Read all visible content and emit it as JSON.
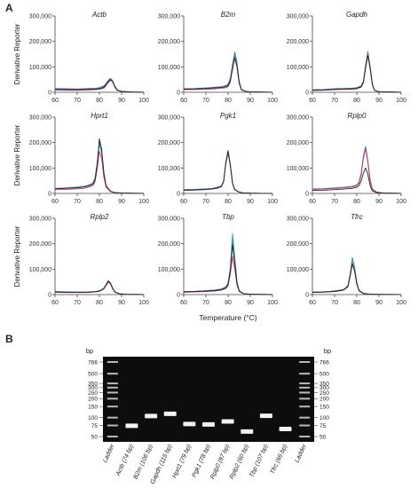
{
  "panel_a_label": "A",
  "panel_b_label": "B",
  "shared": {
    "ylabel": "Derivative  Reporter",
    "xlabel": "Temperature (°C)",
    "xticks": [
      "60",
      "70",
      "80",
      "90",
      "100"
    ],
    "yticks": [
      "0",
      "100,000",
      "200,000",
      "300,000"
    ]
  },
  "chart_data": [
    {
      "type": "line",
      "title": "Actb",
      "xlim": [
        60,
        100
      ],
      "ylim": [
        0,
        300000
      ],
      "x": [
        60,
        65,
        70,
        75,
        78,
        80,
        82,
        83,
        84,
        85,
        86,
        87,
        88,
        90,
        95,
        100
      ],
      "series": [
        {
          "color": "#4a6fb5",
          "values": [
            15000,
            14000,
            13000,
            15000,
            16000,
            18000,
            25000,
            35000,
            47000,
            55000,
            45000,
            25000,
            10000,
            4000,
            1000,
            500
          ]
        },
        {
          "color": "#2aa6a6",
          "values": [
            12000,
            11000,
            10000,
            12000,
            14000,
            16000,
            22000,
            32000,
            45000,
            53000,
            43000,
            22000,
            9000,
            3000,
            1000,
            500
          ]
        },
        {
          "color": "#d6336c",
          "values": [
            9000,
            8000,
            8000,
            9000,
            10000,
            12000,
            16000,
            26000,
            38000,
            48000,
            40000,
            20000,
            8000,
            3000,
            1000,
            500
          ]
        },
        {
          "color": "#222222",
          "values": [
            11000,
            10000,
            10000,
            11000,
            12000,
            14000,
            20000,
            30000,
            42000,
            50000,
            41000,
            21000,
            8000,
            3000,
            1000,
            500
          ]
        }
      ]
    },
    {
      "type": "line",
      "title": "B2m",
      "xlim": [
        60,
        100
      ],
      "ylim": [
        0,
        300000
      ],
      "x": [
        60,
        65,
        70,
        74,
        77,
        79,
        80,
        81,
        82,
        83,
        84,
        85,
        86,
        88,
        90,
        95,
        100
      ],
      "series": [
        {
          "color": "#4a6fb5",
          "values": [
            14000,
            15000,
            17000,
            20000,
            22000,
            26000,
            32000,
            55000,
            110000,
            158000,
            120000,
            45000,
            12000,
            3000,
            1500,
            800,
            500
          ]
        },
        {
          "color": "#2aa6a6",
          "values": [
            13000,
            14000,
            16000,
            19000,
            21000,
            24000,
            30000,
            50000,
            100000,
            148000,
            115000,
            42000,
            11000,
            3000,
            1500,
            800,
            500
          ]
        },
        {
          "color": "#d6336c",
          "values": [
            10000,
            11000,
            12000,
            14000,
            16000,
            18000,
            22000,
            40000,
            95000,
            140000,
            105000,
            38000,
            10000,
            3000,
            1500,
            800,
            500
          ]
        },
        {
          "color": "#222222",
          "values": [
            12000,
            13000,
            15000,
            17000,
            19000,
            22000,
            27000,
            45000,
            90000,
            135000,
            100000,
            36000,
            9000,
            3000,
            1500,
            800,
            500
          ]
        }
      ]
    },
    {
      "type": "line",
      "title": "Gapdh",
      "xlim": [
        60,
        100
      ],
      "ylim": [
        0,
        300000
      ],
      "x": [
        60,
        65,
        70,
        74,
        78,
        80,
        82,
        83,
        84,
        85,
        86,
        87,
        88,
        90,
        95,
        100
      ],
      "series": [
        {
          "color": "#4a6fb5",
          "values": [
            10000,
            11000,
            14000,
            15000,
            16000,
            18000,
            25000,
            45000,
            110000,
            160000,
            105000,
            35000,
            8000,
            2000,
            1000,
            500
          ]
        },
        {
          "color": "#2aa6a6",
          "values": [
            9000,
            10000,
            13000,
            14000,
            15000,
            17000,
            23000,
            42000,
            105000,
            155000,
            100000,
            33000,
            8000,
            2000,
            1000,
            500
          ]
        },
        {
          "color": "#d6336c",
          "values": [
            7000,
            8000,
            10000,
            11000,
            12000,
            14000,
            20000,
            38000,
            100000,
            148000,
            96000,
            31000,
            7000,
            2000,
            1000,
            500
          ]
        },
        {
          "color": "#222222",
          "values": [
            8000,
            9000,
            12000,
            13000,
            14000,
            16000,
            22000,
            40000,
            98000,
            145000,
            94000,
            30000,
            7000,
            2000,
            1000,
            500
          ]
        }
      ]
    },
    {
      "type": "line",
      "title": "Hprt1",
      "xlim": [
        60,
        100
      ],
      "ylim": [
        0,
        300000
      ],
      "x": [
        60,
        65,
        70,
        73,
        75,
        77,
        78,
        79,
        80,
        81,
        82,
        83,
        85,
        87,
        90,
        95,
        100
      ],
      "series": [
        {
          "color": "#4a6fb5",
          "values": [
            20000,
            22000,
            25000,
            28000,
            32000,
            40000,
            60000,
            120000,
            205000,
            170000,
            80000,
            30000,
            8000,
            3000,
            1500,
            800,
            500
          ]
        },
        {
          "color": "#2aa6a6",
          "values": [
            19000,
            21000,
            24000,
            27000,
            30000,
            38000,
            56000,
            115000,
            195000,
            160000,
            75000,
            28000,
            8000,
            3000,
            1500,
            800,
            500
          ]
        },
        {
          "color": "#d6336c",
          "values": [
            15000,
            16000,
            18000,
            20000,
            24000,
            30000,
            45000,
            95000,
            165000,
            140000,
            65000,
            25000,
            7000,
            3000,
            1500,
            800,
            500
          ]
        },
        {
          "color": "#222222",
          "values": [
            18000,
            20000,
            22000,
            25000,
            29000,
            36000,
            53000,
            112000,
            215000,
            175000,
            82000,
            30000,
            8000,
            3000,
            1500,
            800,
            500
          ]
        }
      ]
    },
    {
      "type": "line",
      "title": "Pgk1",
      "xlim": [
        60,
        100
      ],
      "ylim": [
        0,
        300000
      ],
      "x": [
        60,
        65,
        70,
        73,
        75,
        77,
        78,
        79,
        80,
        81,
        82,
        83,
        85,
        87,
        90,
        95,
        100
      ],
      "series": [
        {
          "color": "#4a6fb5",
          "values": [
            15000,
            16000,
            18000,
            20000,
            24000,
            30000,
            50000,
            120000,
            160000,
            110000,
            40000,
            15000,
            5000,
            2000,
            1000,
            500,
            500
          ]
        },
        {
          "color": "#2aa6a6",
          "values": [
            14000,
            15000,
            17000,
            19000,
            23000,
            29000,
            48000,
            118000,
            158000,
            108000,
            39000,
            15000,
            5000,
            2000,
            1000,
            500,
            500
          ]
        },
        {
          "color": "#d6336c",
          "values": [
            12000,
            13000,
            15000,
            17000,
            20000,
            26000,
            45000,
            125000,
            170000,
            115000,
            42000,
            16000,
            5000,
            2000,
            1000,
            500,
            500
          ]
        },
        {
          "color": "#222222",
          "values": [
            13000,
            14000,
            16000,
            18000,
            22000,
            28000,
            47000,
            122000,
            165000,
            112000,
            41000,
            15000,
            5000,
            2000,
            1000,
            500,
            500
          ]
        }
      ]
    },
    {
      "type": "line",
      "title": "Rplp0",
      "xlim": [
        60,
        100
      ],
      "ylim": [
        0,
        300000
      ],
      "x": [
        60,
        65,
        70,
        74,
        78,
        80,
        81,
        82,
        83,
        84,
        85,
        86,
        87,
        89,
        92,
        100
      ],
      "series": [
        {
          "color": "#4a6fb5",
          "values": [
            18000,
            19000,
            22000,
            24000,
            28000,
            34000,
            45000,
            80000,
            150000,
            185000,
            130000,
            55000,
            18000,
            5000,
            1500,
            500
          ]
        },
        {
          "color": "#2aa6a6",
          "values": [
            17000,
            18000,
            21000,
            23000,
            27000,
            32000,
            42000,
            75000,
            145000,
            180000,
            126000,
            52000,
            17000,
            5000,
            1500,
            500
          ]
        },
        {
          "color": "#d6336c",
          "values": [
            16000,
            17000,
            20000,
            22000,
            25000,
            30000,
            40000,
            72000,
            140000,
            175000,
            122000,
            50000,
            16000,
            5000,
            1500,
            500
          ]
        },
        {
          "color": "#222222",
          "values": [
            12000,
            13000,
            15000,
            17000,
            20000,
            24000,
            30000,
            50000,
            80000,
            100000,
            75000,
            32000,
            10000,
            3000,
            1000,
            500
          ]
        }
      ]
    },
    {
      "type": "line",
      "title": "Rplp2",
      "xlim": [
        60,
        100
      ],
      "ylim": [
        0,
        300000
      ],
      "x": [
        60,
        65,
        70,
        74,
        78,
        80,
        82,
        83,
        84,
        85,
        86,
        87,
        89,
        92,
        100
      ],
      "series": [
        {
          "color": "#4a6fb5",
          "values": [
            12000,
            11000,
            10000,
            10000,
            12000,
            15000,
            25000,
            40000,
            55000,
            45000,
            25000,
            10000,
            3000,
            1000,
            500
          ]
        },
        {
          "color": "#2aa6a6",
          "values": [
            11000,
            10000,
            9000,
            9000,
            11000,
            14000,
            23000,
            37000,
            52000,
            43000,
            23000,
            9000,
            3000,
            1000,
            500
          ]
        },
        {
          "color": "#d6336c",
          "values": [
            9000,
            8000,
            8000,
            8000,
            10000,
            13000,
            22000,
            36000,
            50000,
            42000,
            22000,
            9000,
            3000,
            1000,
            500
          ]
        },
        {
          "color": "#222222",
          "values": [
            10000,
            9000,
            9000,
            9000,
            11000,
            14000,
            24000,
            38000,
            53000,
            44000,
            24000,
            10000,
            3000,
            1000,
            500
          ]
        }
      ]
    },
    {
      "type": "line",
      "title": "Tbp",
      "xlim": [
        60,
        100
      ],
      "ylim": [
        0,
        300000
      ],
      "x": [
        60,
        65,
        70,
        74,
        77,
        79,
        80,
        81,
        82,
        83,
        84,
        85,
        87,
        90,
        95,
        100
      ],
      "series": [
        {
          "color": "#4a6fb5",
          "values": [
            12000,
            13000,
            15000,
            18000,
            22000,
            30000,
            45000,
            100000,
            215000,
            140000,
            50000,
            15000,
            4000,
            1500,
            800,
            500
          ]
        },
        {
          "color": "#2aa6a6",
          "values": [
            12000,
            13000,
            15000,
            18000,
            22000,
            30000,
            46000,
            105000,
            240000,
            150000,
            52000,
            16000,
            4000,
            1500,
            800,
            500
          ]
        },
        {
          "color": "#d6336c",
          "values": [
            9000,
            10000,
            12000,
            14000,
            17000,
            24000,
            35000,
            80000,
            150000,
            100000,
            38000,
            12000,
            3000,
            1500,
            800,
            500
          ]
        },
        {
          "color": "#222222",
          "values": [
            11000,
            12000,
            14000,
            16000,
            20000,
            27000,
            40000,
            92000,
            195000,
            125000,
            45000,
            14000,
            4000,
            1500,
            800,
            500
          ]
        }
      ]
    },
    {
      "type": "line",
      "title": "Tfrc",
      "xlim": [
        60,
        100
      ],
      "ylim": [
        0,
        300000
      ],
      "x": [
        60,
        65,
        68,
        70,
        72,
        74,
        76,
        77,
        78,
        79,
        80,
        81,
        83,
        86,
        90,
        100
      ],
      "series": [
        {
          "color": "#4a6fb5",
          "values": [
            10000,
            11000,
            13000,
            15000,
            17000,
            20000,
            35000,
            80000,
            145000,
            110000,
            50000,
            18000,
            5000,
            1500,
            800,
            500
          ]
        },
        {
          "color": "#2aa6a6",
          "values": [
            9000,
            10000,
            12000,
            14000,
            16000,
            19000,
            33000,
            75000,
            140000,
            105000,
            48000,
            17000,
            5000,
            1500,
            800,
            500
          ]
        },
        {
          "color": "#d6336c",
          "values": [
            8000,
            9000,
            11000,
            12000,
            14000,
            17000,
            30000,
            70000,
            125000,
            95000,
            43000,
            15000,
            4000,
            1500,
            800,
            500
          ]
        },
        {
          "color": "#222222",
          "values": [
            9000,
            10000,
            11000,
            13000,
            15000,
            18000,
            31000,
            72000,
            120000,
            92000,
            42000,
            15000,
            4000,
            1500,
            800,
            500
          ]
        }
      ]
    }
  ],
  "gel": {
    "unit": "bp",
    "marker_labels": [
      "766",
      "500",
      "350",
      "300",
      "250",
      "200",
      "150",
      "100",
      "75",
      "50"
    ],
    "marker_values": [
      766,
      500,
      350,
      300,
      250,
      200,
      150,
      100,
      75,
      50
    ],
    "lanes": [
      {
        "label": "Ladder",
        "ladder": true
      },
      {
        "label": "Actb (74 bp)",
        "bp": 74
      },
      {
        "label": "B2m (106 bp)",
        "bp": 106
      },
      {
        "label": "Gapdh (115 bp)",
        "bp": 115
      },
      {
        "label": "Hprt1 (79 bp)",
        "bp": 79
      },
      {
        "label": "Pgk1 (78 bp)",
        "bp": 78
      },
      {
        "label": "Rplp0 (87 bp)",
        "bp": 87
      },
      {
        "label": "Rplp2 (60 bp)",
        "bp": 60
      },
      {
        "label": "Tbp (107 bp)",
        "bp": 107
      },
      {
        "label": "Tfrc (66 bp)",
        "bp": 66
      },
      {
        "label": "Ladder",
        "ladder": true
      }
    ]
  }
}
